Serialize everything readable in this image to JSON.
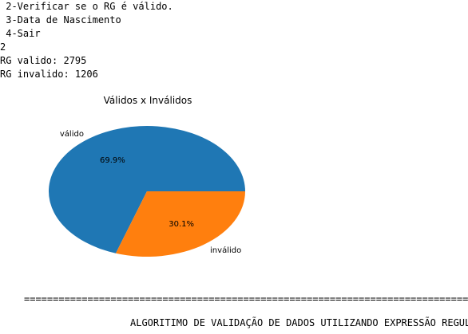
{
  "console": {
    "lines": [
      " 2-Verificar se o RG é válido.",
      " 3-Data de Nascimento",
      " 4-Sair",
      "2",
      "RG valido: 2795",
      "RG invalido: 1206"
    ],
    "separator": "=============================================================================",
    "footer": "ALGORITIMO DE VALIDAÇÃO DE DADOS UTILIZANDO EXPRESSÃO REGULAR"
  },
  "chart_data": {
    "type": "pie",
    "title": "Válidos x Inválidos",
    "labels": [
      "válido",
      "inválido"
    ],
    "values": [
      2795,
      1206
    ],
    "percent_labels": [
      "69.9%",
      "30.1%"
    ],
    "colors": [
      "#1f77b4",
      "#ff7f0e"
    ]
  }
}
